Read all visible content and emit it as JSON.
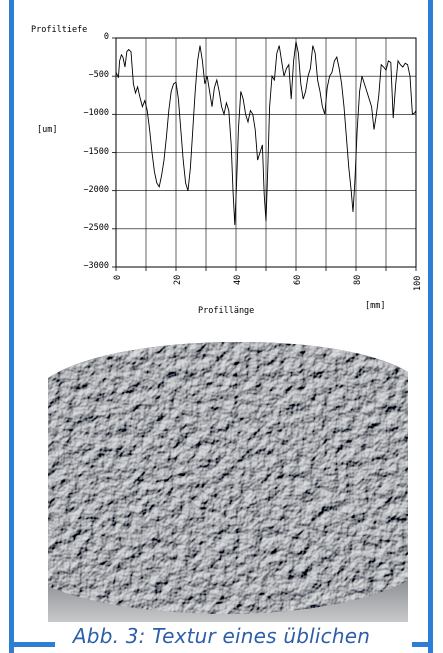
{
  "colors": {
    "frame": "#2d7fd6",
    "caption": "#2d5fa8",
    "chart_line": "#000000",
    "texture_dark": "#2a2d31",
    "texture_mid": "#6b6f74",
    "texture_light": "#c9cbcd"
  },
  "chart_data": {
    "type": "line",
    "ylabel_title": "Profiltiefe",
    "yunit": "[um]",
    "xlabel": "Profillänge",
    "xunit": "[mm]",
    "xlim": [
      0,
      100
    ],
    "ylim": [
      -3000,
      0
    ],
    "xticks": [
      0,
      20,
      40,
      60,
      80,
      100
    ],
    "yticks": [
      0,
      -500,
      -1000,
      -1500,
      -2000,
      -2500,
      -3000
    ],
    "grid": true,
    "series": [
      {
        "x": [
          0,
          0.8,
          1.2,
          1.8,
          2.3,
          3.0,
          3.6,
          4.2,
          5.0,
          5.8,
          6.5,
          7.2,
          8.0,
          8.8,
          9.6,
          10.4,
          11.2,
          12.0,
          12.8,
          13.6,
          14.4,
          15.2,
          16.0,
          16.8,
          17.6,
          18.4,
          19.2,
          20.0,
          20.8,
          21.6,
          22.4,
          23.2,
          24.0,
          24.8,
          25.6,
          26.4,
          27.2,
          28.0,
          28.8,
          29.6,
          30.4,
          31.2,
          32.0,
          32.8,
          33.6,
          34.4,
          35.2,
          36.0,
          36.8,
          37.6,
          38.4,
          39.0,
          39.6,
          40.2,
          40.8,
          41.6,
          42.4,
          43.2,
          44.0,
          44.8,
          45.6,
          46.4,
          47.2,
          48.0,
          48.8,
          49.4,
          50.0,
          50.6,
          51.2,
          52.0,
          52.8,
          53.6,
          54.4,
          55.2,
          56.0,
          56.8,
          57.6,
          58.4,
          59.2,
          60.0,
          60.8,
          61.6,
          62.4,
          63.2,
          64.0,
          64.8,
          65.6,
          66.4,
          67.2,
          68.0,
          68.8,
          69.6,
          70.4,
          71.2,
          72.0,
          72.8,
          73.6,
          74.4,
          75.2,
          76.0,
          76.8,
          77.6,
          78.4,
          79.0,
          79.6,
          80.4,
          81.2,
          82.0,
          82.8,
          83.6,
          84.4,
          85.2,
          86.0,
          86.8,
          87.6,
          88.4,
          89.2,
          90.0,
          90.8,
          91.6,
          92.4,
          93.2,
          94.0,
          94.8,
          95.6,
          96.4,
          97.2,
          98.0,
          98.8,
          99.6,
          100
        ],
        "y": [
          -450,
          -520,
          -300,
          -220,
          -250,
          -380,
          -180,
          -150,
          -180,
          -600,
          -720,
          -640,
          -780,
          -900,
          -820,
          -950,
          -1200,
          -1500,
          -1750,
          -1900,
          -1950,
          -1800,
          -1600,
          -1300,
          -950,
          -700,
          -600,
          -580,
          -800,
          -1200,
          -1600,
          -1900,
          -2000,
          -1700,
          -1200,
          -700,
          -300,
          -100,
          -300,
          -600,
          -500,
          -700,
          -900,
          -650,
          -550,
          -700,
          -900,
          -1000,
          -850,
          -950,
          -1400,
          -2000,
          -2450,
          -1900,
          -1200,
          -700,
          -800,
          -1000,
          -1100,
          -950,
          -1000,
          -1200,
          -1600,
          -1500,
          -1400,
          -2050,
          -2400,
          -1700,
          -900,
          -500,
          -550,
          -200,
          -100,
          -300,
          -500,
          -400,
          -350,
          -800,
          -300,
          -50,
          -200,
          -600,
          -800,
          -700,
          -500,
          -400,
          -100,
          -200,
          -550,
          -700,
          -900,
          -1000,
          -650,
          -500,
          -450,
          -300,
          -250,
          -400,
          -600,
          -900,
          -1300,
          -1700,
          -2000,
          -2280,
          -1900,
          -1200,
          -700,
          -500,
          -600,
          -700,
          -800,
          -900,
          -1200,
          -1000,
          -750,
          -350,
          -380,
          -420,
          -300,
          -320,
          -1050,
          -620,
          -300,
          -350,
          -380,
          -330,
          -350,
          -500,
          -1000,
          -980,
          -950
        ]
      }
    ]
  },
  "caption": {
    "text": "Abb. 3: Textur eines üblichen"
  }
}
